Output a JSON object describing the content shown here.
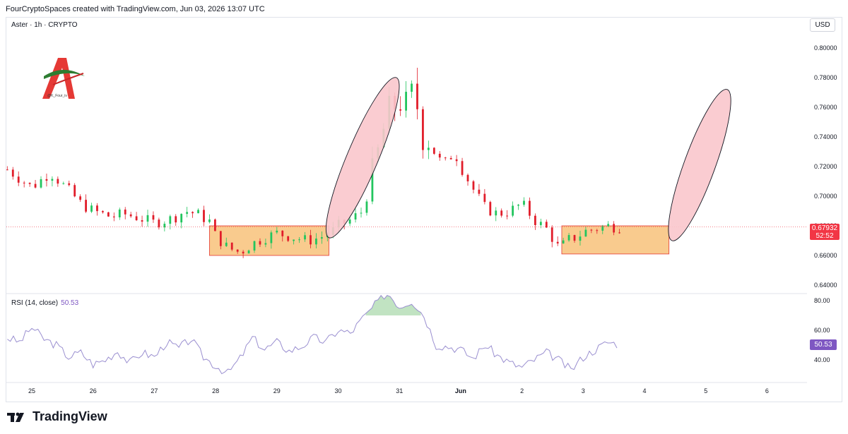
{
  "header": {
    "credit": "FourCryptoSpaces created with TradingView.com, Jun 03, 2026 13:07 UTC"
  },
  "symbol_label": "Aster · 1h · CRYPTO",
  "currency_button": "USD",
  "logo": {
    "caption": "@K_Four_iv"
  },
  "price_tag": {
    "price": "0.67932",
    "countdown": "52:52"
  },
  "rsi": {
    "label": "RSI (14, close)",
    "value": "50.53",
    "tag": "50.53"
  },
  "footer": {
    "brand": "TradingView"
  },
  "colors": {
    "up": "#22c55e",
    "down": "#e11d2a",
    "rsi_line": "#9a8fd0",
    "zone_fill": "#f8c27a",
    "ellipse_fill": "#f9c6cc"
  },
  "chart_data": [
    {
      "type": "candlestick",
      "title": "",
      "ylim": [
        0.63,
        0.81
      ],
      "y_ticks": [
        "0.80000",
        "0.78000",
        "0.76000",
        "0.74000",
        "0.72000",
        "0.70000",
        "0.68000",
        "0.66000",
        "0.64000"
      ],
      "y_tick_values": [
        0.8,
        0.78,
        0.76,
        0.74,
        0.72,
        0.7,
        0.68,
        0.66,
        0.64
      ],
      "x_ticks": [
        "25",
        "26",
        "27",
        "28",
        "29",
        "30",
        "31",
        "Jun",
        "2",
        "3",
        "4",
        "5",
        "6"
      ],
      "x_tick_days": [
        0,
        1,
        2,
        3,
        4,
        5,
        6,
        7,
        8,
        9,
        10,
        11,
        12
      ],
      "x_range_days": [
        -0.4,
        12.8
      ],
      "series": [
        {
          "x_days": [
            -0.4,
            0.0,
            0.3,
            0.6,
            0.8,
            1.0,
            1.3,
            1.5,
            1.7,
            2.0,
            2.3,
            2.5,
            2.7,
            2.9,
            3.0,
            3.2,
            3.4,
            3.6,
            3.8,
            4.0,
            4.3,
            4.5,
            4.7,
            4.9,
            5.0,
            5.2,
            5.4,
            5.6,
            5.8,
            6.0,
            6.1,
            6.2,
            6.3,
            6.35,
            6.5,
            6.6,
            6.7,
            6.9,
            7.0,
            7.2,
            7.4,
            7.6,
            7.8,
            8.0,
            8.2,
            8.4,
            8.6,
            8.7,
            8.8,
            8.9,
            9.0,
            9.2,
            9.4,
            9.6
          ],
          "close": [
            0.718,
            0.706,
            0.716,
            0.704,
            0.695,
            0.69,
            0.686,
            0.688,
            0.686,
            0.682,
            0.685,
            0.69,
            0.688,
            0.683,
            0.673,
            0.665,
            0.662,
            0.668,
            0.672,
            0.675,
            0.672,
            0.67,
            0.672,
            0.676,
            0.68,
            0.684,
            0.69,
            0.72,
            0.755,
            0.765,
            0.76,
            0.768,
            0.76,
            0.742,
            0.738,
            0.73,
            0.72,
            0.73,
            0.72,
            0.705,
            0.692,
            0.688,
            0.69,
            0.695,
            0.684,
            0.678,
            0.665,
            0.668,
            0.672,
            0.672,
            0.676,
            0.678,
            0.68,
            0.679
          ]
        }
      ],
      "annotations": {
        "consolidation_zones": [
          {
            "x_start_days": 2.9,
            "x_end_days": 4.85,
            "y_low": 0.66,
            "y_high": 0.68
          },
          {
            "x_start_days": 8.65,
            "x_end_days": 10.4,
            "y_low": 0.661,
            "y_high": 0.68
          }
        ],
        "ellipses": [
          {
            "from": [
              4.85,
              0.672
            ],
            "to": [
              5.95,
              0.78
            ]
          },
          {
            "from": [
              10.45,
              0.67
            ],
            "to": [
              11.35,
              0.772
            ]
          }
        ]
      }
    },
    {
      "type": "line",
      "title": "RSI (14, close)",
      "ylim": [
        26,
        84
      ],
      "y_ticks": [
        "80.00",
        "60.00",
        "40.00"
      ],
      "y_tick_values": [
        80,
        60,
        40
      ],
      "overbought": 70,
      "series": [
        {
          "x_days": [
            -0.4,
            -0.2,
            0.0,
            0.2,
            0.4,
            0.6,
            0.8,
            1.0,
            1.2,
            1.4,
            1.6,
            1.8,
            2.0,
            2.2,
            2.4,
            2.6,
            2.8,
            3.0,
            3.2,
            3.4,
            3.6,
            3.8,
            4.0,
            4.2,
            4.4,
            4.6,
            4.8,
            5.0,
            5.2,
            5.4,
            5.6,
            5.8,
            6.0,
            6.2,
            6.4,
            6.6,
            6.8,
            7.0,
            7.2,
            7.4,
            7.6,
            7.8,
            8.0,
            8.2,
            8.4,
            8.6,
            8.8,
            9.0,
            9.2,
            9.4,
            9.6
          ],
          "values": [
            55,
            52,
            62,
            54,
            50,
            42,
            45,
            37,
            40,
            46,
            38,
            45,
            42,
            52,
            48,
            54,
            42,
            36,
            31,
            41,
            55,
            47,
            52,
            46,
            49,
            55,
            52,
            60,
            58,
            68,
            77,
            86,
            76,
            80,
            70,
            50,
            49,
            47,
            41,
            50,
            43,
            38,
            35,
            40,
            45,
            40,
            33,
            42,
            47,
            52,
            50.5
          ]
        }
      ]
    }
  ]
}
